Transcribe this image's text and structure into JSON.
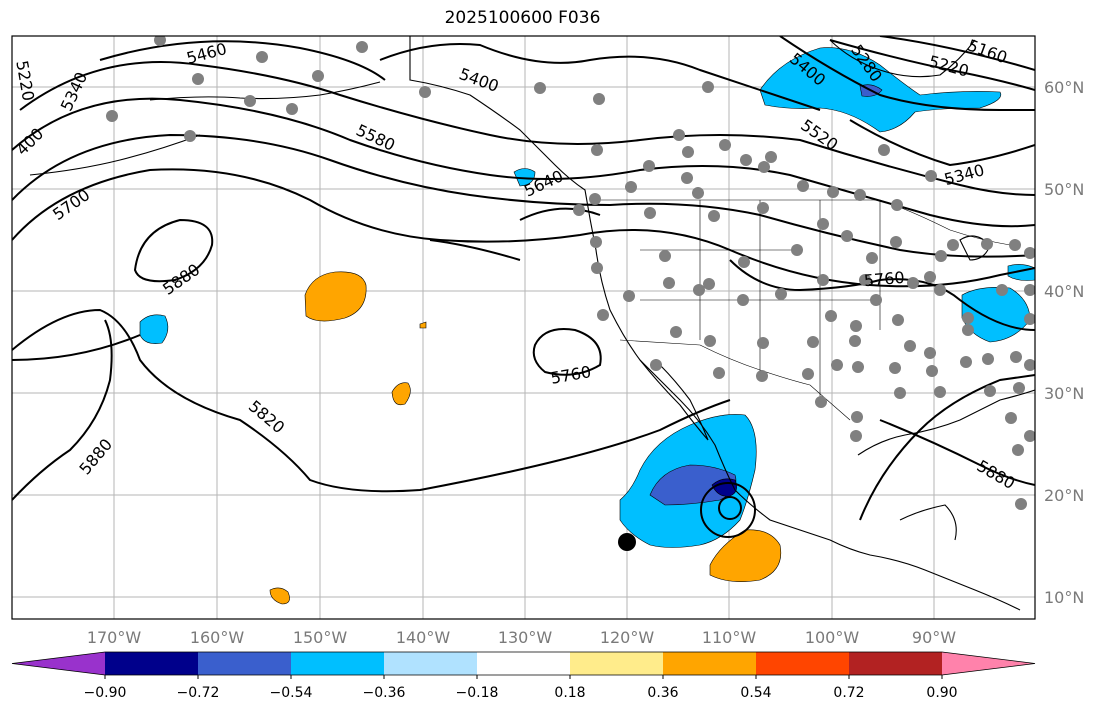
{
  "title": "2025100600 F036",
  "lat_labels": [
    "60°N",
    "50°N",
    "40°N",
    "30°N",
    "20°N",
    "10°N"
  ],
  "lon_labels": [
    "170°W",
    "160°W",
    "150°W",
    "140°W",
    "130°W",
    "120°W",
    "110°W",
    "100°W",
    "90°W"
  ],
  "contour_labels": [
    "5460",
    "5400",
    "5280",
    "5220",
    "5160",
    "5400",
    "5520",
    "5340",
    "5580",
    "5640",
    "5700",
    "5340",
    "5220",
    "400",
    "5880",
    "5760",
    "5760",
    "5820",
    "5880",
    "5880"
  ],
  "colorbar": {
    "ticks": [
      "−0.90",
      "−0.72",
      "−0.54",
      "−0.36",
      "−0.18",
      "0.18",
      "0.36",
      "0.54",
      "0.72",
      "0.90"
    ],
    "colors": [
      "#9932cc",
      "#00008b",
      "#3a5fcd",
      "#00bfff",
      "#b0e2ff",
      "#ffffff",
      "#ffec8b",
      "#ffa500",
      "#ff4500",
      "#b22222",
      "#ff82ab"
    ]
  }
}
